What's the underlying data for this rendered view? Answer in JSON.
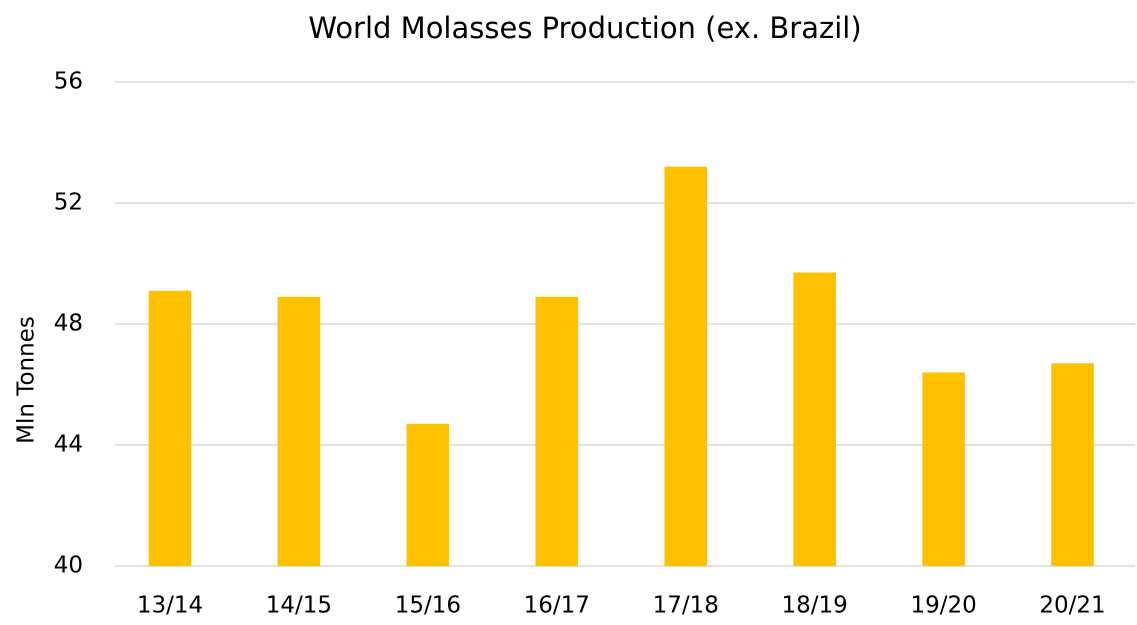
{
  "chart_data": {
    "type": "bar",
    "title": "World Molasses Production (ex. Brazil)",
    "y_label": "Mln Tonnes",
    "categories": [
      "13/14",
      "14/15",
      "15/16",
      "16/17",
      "17/18",
      "18/19",
      "19/20",
      "20/21"
    ],
    "values": [
      49.1,
      48.9,
      44.7,
      48.9,
      53.2,
      49.7,
      46.4,
      46.7
    ],
    "color": "#ffc000",
    "ylim": [
      40,
      56
    ],
    "yticks": [
      40,
      44,
      48,
      52,
      56
    ],
    "grid": true
  }
}
